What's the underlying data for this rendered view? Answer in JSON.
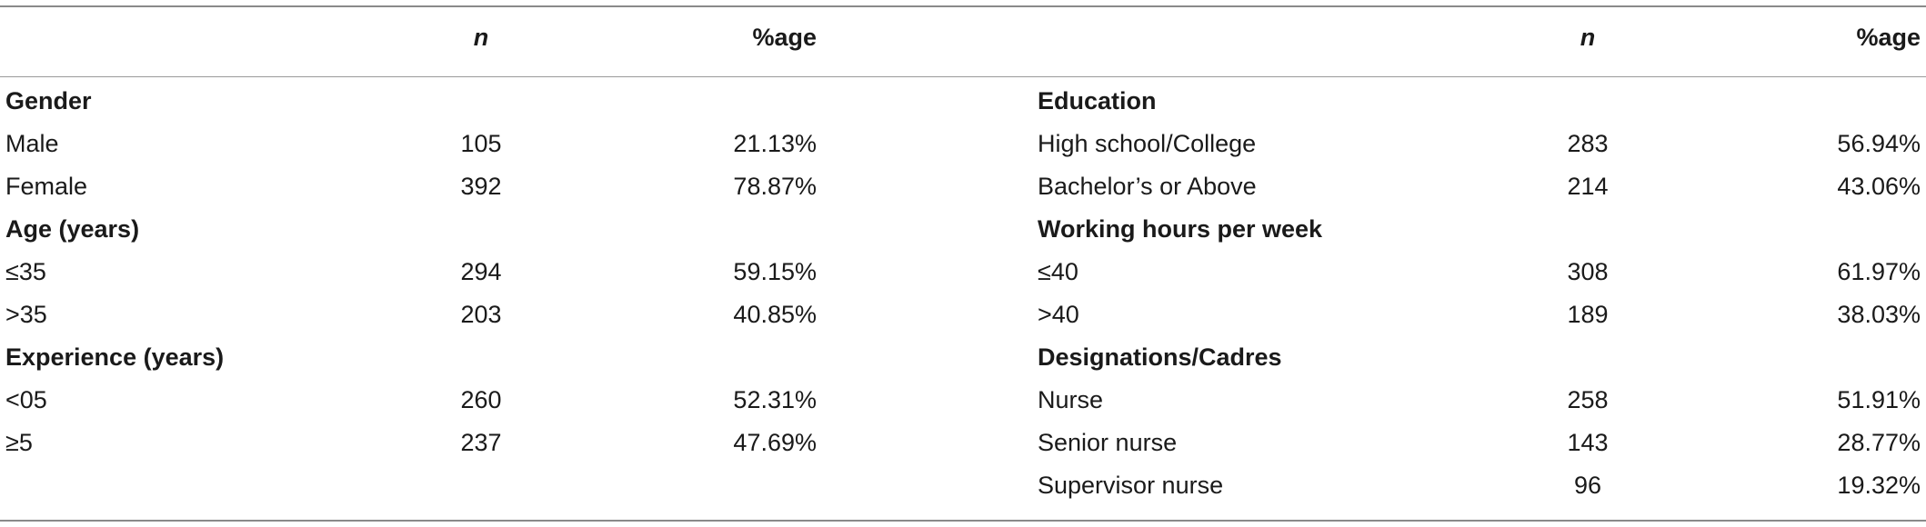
{
  "header": {
    "n_label": "n",
    "pct_label": "%age"
  },
  "left": {
    "sections": [
      {
        "title": "Gender",
        "rows": [
          {
            "label": "Male",
            "n": "105",
            "pct": "21.13%"
          },
          {
            "label": "Female",
            "n": "392",
            "pct": "78.87%"
          }
        ]
      },
      {
        "title": "Age (years)",
        "rows": [
          {
            "label": "≤35",
            "n": "294",
            "pct": "59.15%"
          },
          {
            "label": ">35",
            "n": "203",
            "pct": "40.85%"
          }
        ]
      },
      {
        "title": "Experience (years)",
        "rows": [
          {
            "label": "<05",
            "n": "260",
            "pct": "52.31%"
          },
          {
            "label": "≥5",
            "n": "237",
            "pct": "47.69%"
          }
        ]
      }
    ]
  },
  "right": {
    "sections": [
      {
        "title": "Education",
        "rows": [
          {
            "label": "High school/College",
            "n": "283",
            "pct": "56.94%"
          },
          {
            "label": "Bachelor’s or Above",
            "n": "214",
            "pct": "43.06%"
          }
        ]
      },
      {
        "title": "Working hours per week",
        "rows": [
          {
            "label": "≤40",
            "n": "308",
            "pct": "61.97%"
          },
          {
            "label": ">40",
            "n": "189",
            "pct": "38.03%"
          }
        ]
      },
      {
        "title": "Designations/Cadres",
        "rows": [
          {
            "label": "Nurse",
            "n": "258",
            "pct": "51.91%"
          },
          {
            "label": "Senior nurse",
            "n": "143",
            "pct": "28.77%"
          },
          {
            "label": "Supervisor nurse",
            "n": "96",
            "pct": "19.32%"
          }
        ]
      }
    ]
  }
}
